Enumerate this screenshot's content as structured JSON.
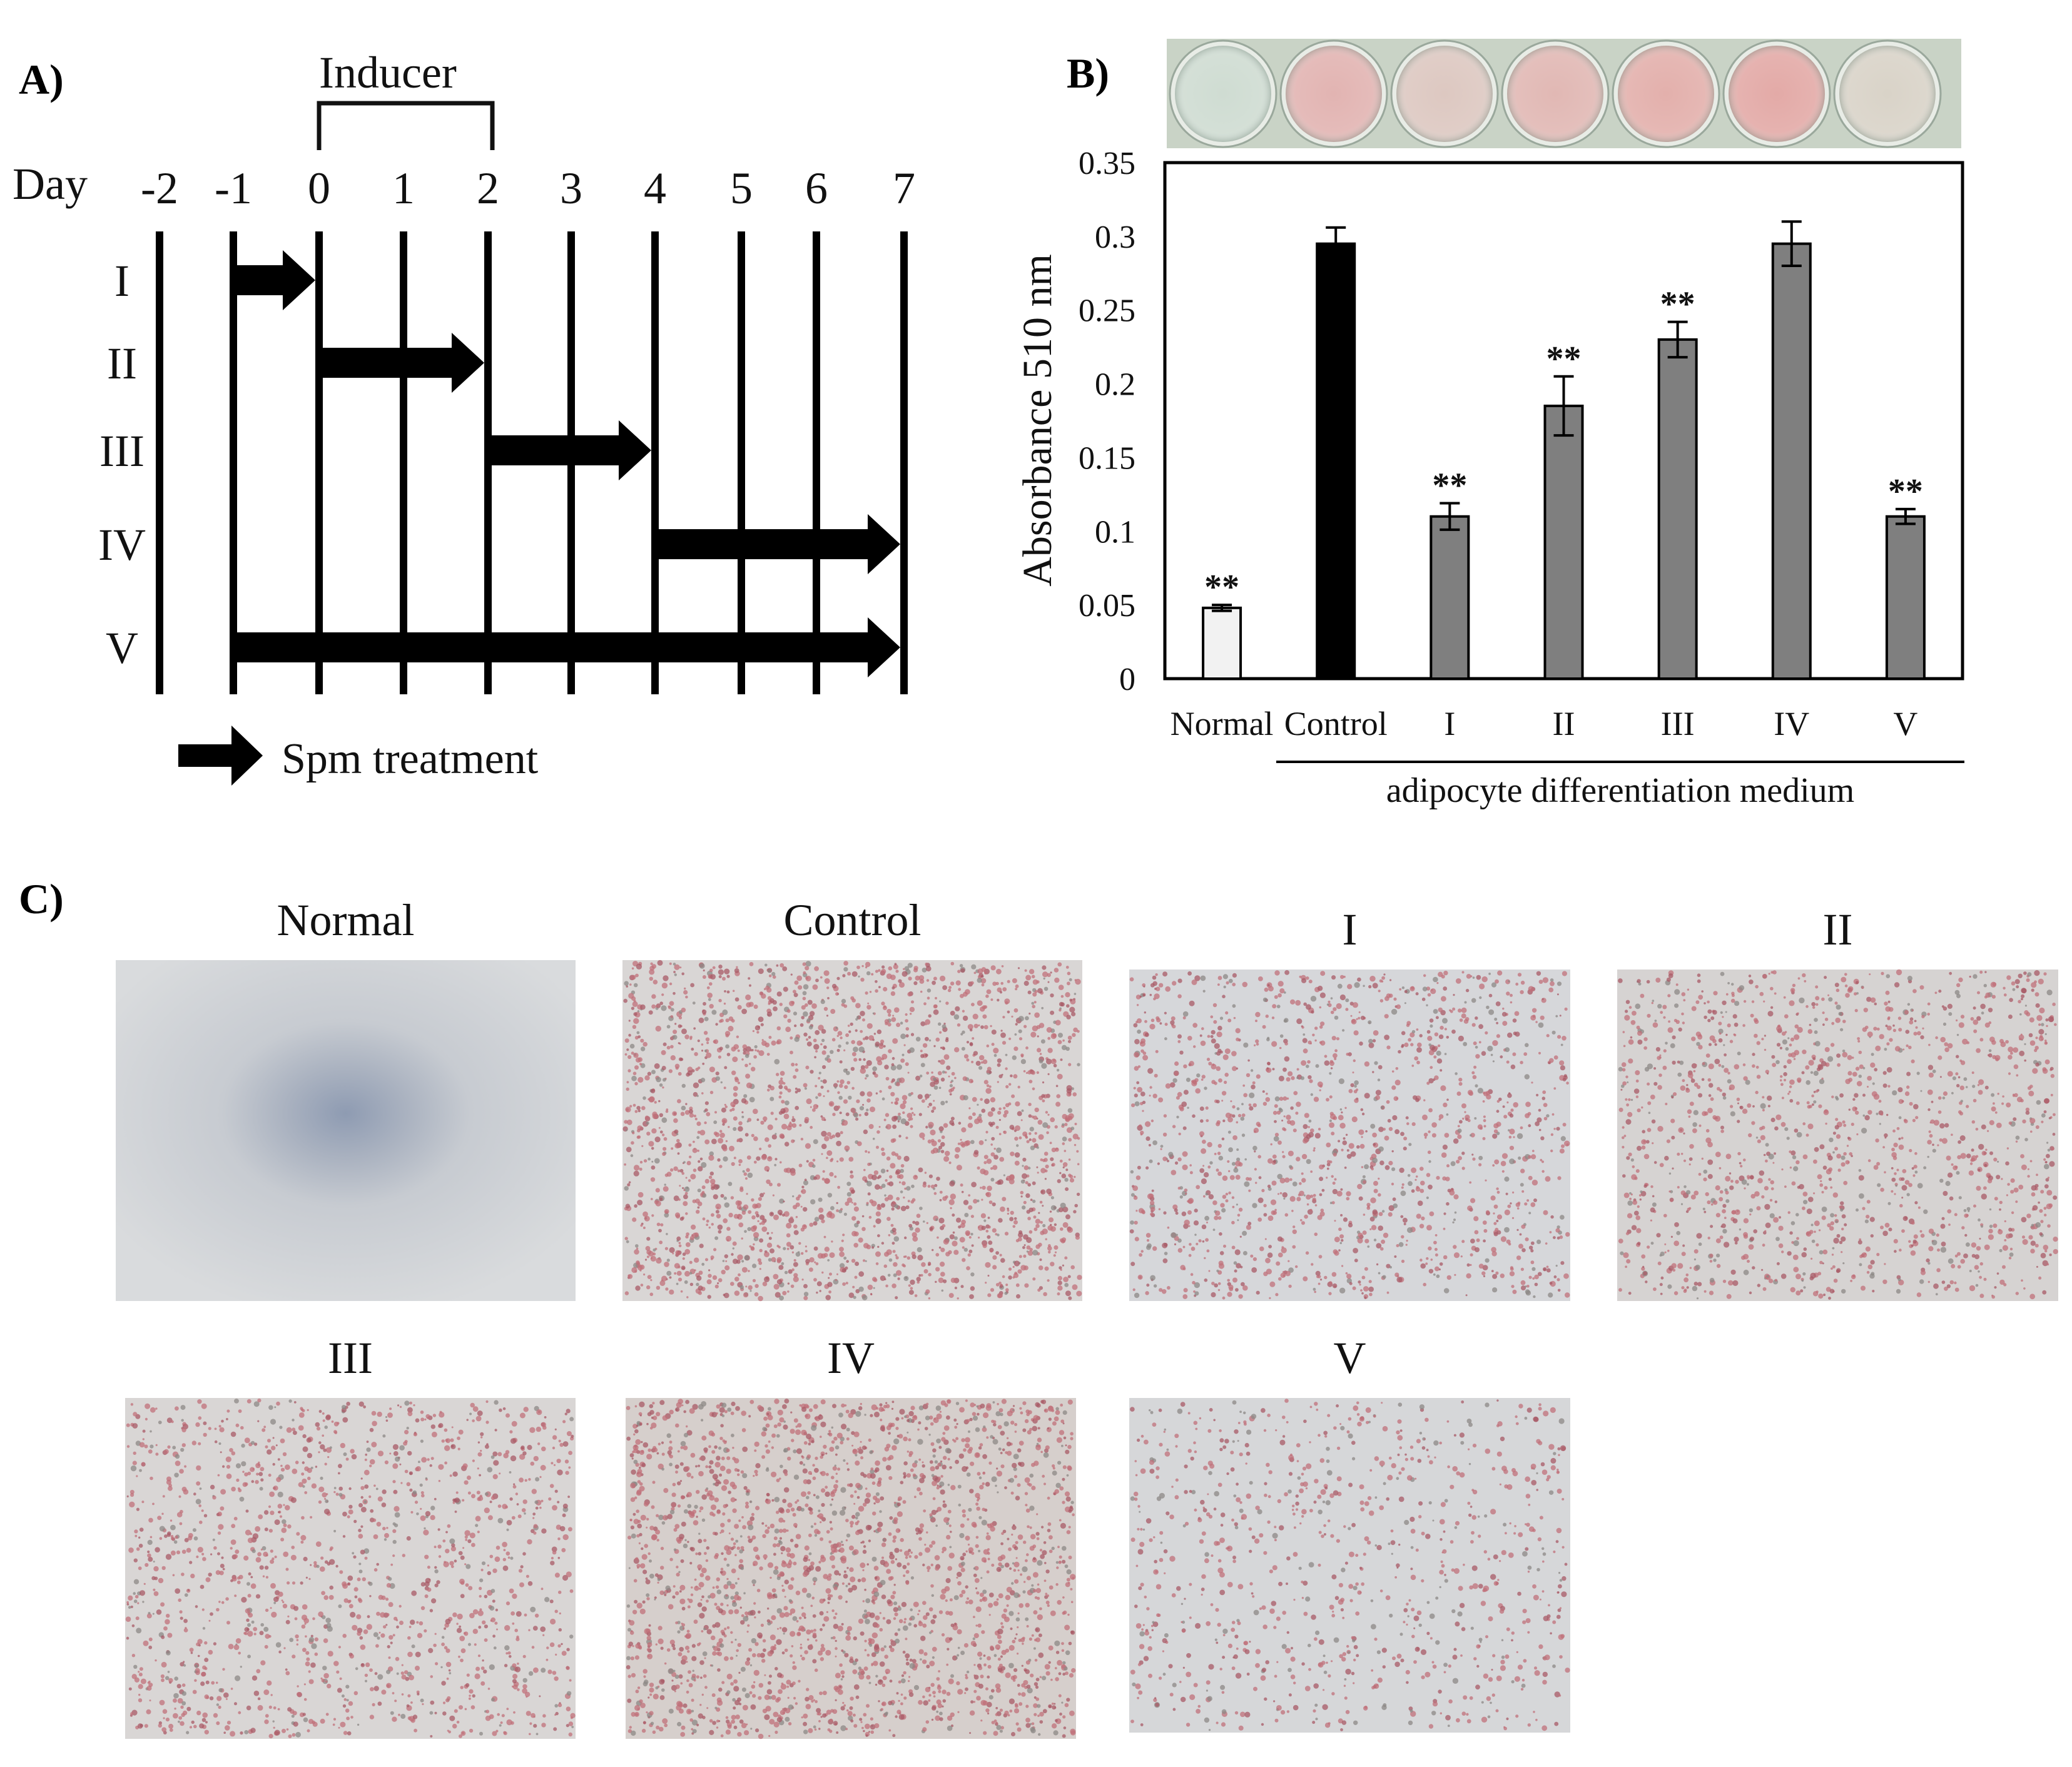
{
  "panel_a": {
    "label": "A)",
    "day_label": "Day",
    "days": [
      "-2",
      "-1",
      "0",
      "1",
      "2",
      "3",
      "4",
      "5",
      "6",
      "7"
    ],
    "inducer_label": "Inducer",
    "inducer_days": [
      "0",
      "2"
    ],
    "rows": [
      {
        "label": "I",
        "from_day": -1,
        "to_day": 0
      },
      {
        "label": "II",
        "from_day": 0,
        "to_day": 2
      },
      {
        "label": "III",
        "from_day": 2,
        "to_day": 4
      },
      {
        "label": "IV",
        "from_day": 4,
        "to_day": 7
      },
      {
        "label": "V",
        "from_day": -1,
        "to_day": 7
      }
    ],
    "legend_label": "Spm treatment"
  },
  "panel_b": {
    "label": "B)",
    "wells": [
      {
        "name": "Normal",
        "color": "#cfdcd2"
      },
      {
        "name": "Control",
        "color": "#e2b4b2"
      },
      {
        "name": "I",
        "color": "#ddc8c1"
      },
      {
        "name": "II",
        "color": "#e1b8b4"
      },
      {
        "name": "III",
        "color": "#e3b0ac"
      },
      {
        "name": "IV",
        "color": "#e3aaa7"
      },
      {
        "name": "V",
        "color": "#d9d3c8"
      }
    ],
    "group_label": "adipocyte differentiation medium",
    "significance_mark": "**"
  },
  "chart_data": {
    "type": "bar",
    "categories": [
      "Normal",
      "Control",
      "I",
      "II",
      "III",
      "IV",
      "V"
    ],
    "series": [
      {
        "values": [
          0.048,
          0.295,
          0.11,
          0.185,
          0.23,
          0.295,
          0.11
        ],
        "errors": [
          0.002,
          0.011,
          0.009,
          0.02,
          0.012,
          0.015,
          0.005
        ],
        "significant": [
          true,
          false,
          true,
          true,
          true,
          false,
          true
        ],
        "colors": [
          "#f2f2f2",
          "#000000",
          "#7f7f7f",
          "#7f7f7f",
          "#7f7f7f",
          "#7f7f7f",
          "#7f7f7f"
        ]
      }
    ],
    "ylabel": "Absorbance  510 nm",
    "xlabel": "",
    "ylim": [
      0,
      0.35
    ],
    "yticks": [
      "0",
      "0.05",
      "0.1",
      "0.15",
      "0.2",
      "0.25",
      "0.3",
      "0.35"
    ],
    "grid": false,
    "legend": "none"
  },
  "panel_c": {
    "label": "C)",
    "images": [
      {
        "title": "Normal",
        "stain": "none",
        "background": "#cdd0d3"
      },
      {
        "title": "Control",
        "stain": "dense",
        "background": "#d9d6d5"
      },
      {
        "title": "I",
        "stain": "medium",
        "background": "#d6d7da"
      },
      {
        "title": "II",
        "stain": "medium",
        "background": "#d6d3d2"
      },
      {
        "title": "III",
        "stain": "medium",
        "background": "#d9d6d5"
      },
      {
        "title": "IV",
        "stain": "dense",
        "background": "#d6cfcc"
      },
      {
        "title": "V",
        "stain": "light",
        "background": "#d6d7d9"
      }
    ]
  }
}
